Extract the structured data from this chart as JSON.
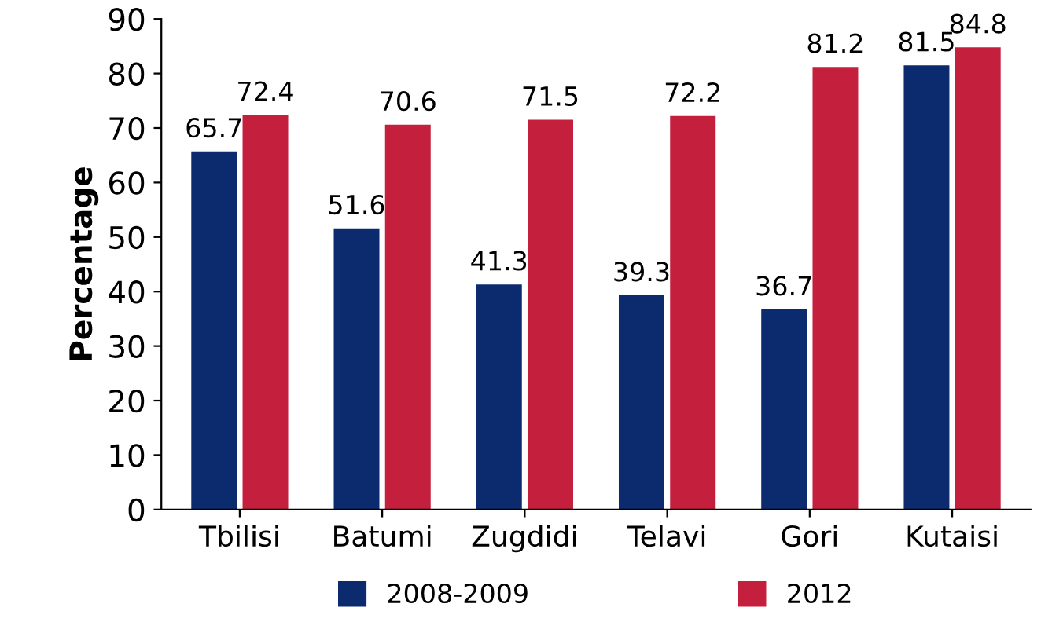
{
  "chart_data": {
    "type": "bar",
    "ylabel": "Percentage",
    "categories": [
      "Tbilisi",
      "Batumi",
      "Zugdidi",
      "Telavi",
      "Gori",
      "Kutaisi"
    ],
    "series": [
      {
        "name": "2008-2009",
        "color": "#0c2a6e",
        "values": [
          65.7,
          51.6,
          41.3,
          39.3,
          36.7,
          81.5
        ]
      },
      {
        "name": "2012",
        "color": "#c4203d",
        "values": [
          72.4,
          70.6,
          71.5,
          72.2,
          81.2,
          84.8
        ]
      }
    ],
    "ylim": [
      0,
      90
    ],
    "yticks": [
      0,
      10,
      20,
      30,
      40,
      50,
      60,
      70,
      80,
      90
    ],
    "data_labels": true,
    "legend": "bottom",
    "grid": false
  }
}
